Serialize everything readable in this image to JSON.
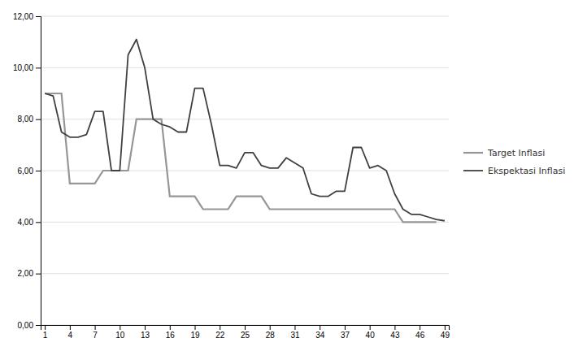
{
  "chart_data": {
    "type": "line",
    "series": [
      {
        "name": "Target Inflasi",
        "color": "#969696",
        "x": [
          1,
          2,
          3,
          4,
          5,
          6,
          7,
          8,
          9,
          10,
          11,
          12,
          13,
          14,
          15,
          16,
          17,
          18,
          19,
          20,
          21,
          22,
          23,
          24,
          25,
          26,
          27,
          28,
          29,
          30,
          31,
          32,
          33,
          34,
          35,
          36,
          37,
          38,
          39,
          40,
          41,
          42,
          43,
          44,
          45,
          46,
          47,
          48
        ],
        "values": [
          9.0,
          9.0,
          9.0,
          5.5,
          5.5,
          5.5,
          5.5,
          6.0,
          6.0,
          6.0,
          6.0,
          8.0,
          8.0,
          8.0,
          8.0,
          5.0,
          5.0,
          5.0,
          5.0,
          4.5,
          4.5,
          4.5,
          4.5,
          5.0,
          5.0,
          5.0,
          5.0,
          4.5,
          4.5,
          4.5,
          4.5,
          4.5,
          4.5,
          4.5,
          4.5,
          4.5,
          4.5,
          4.5,
          4.5,
          4.5,
          4.5,
          4.5,
          4.5,
          4.0,
          4.0,
          4.0,
          4.0,
          4.0
        ]
      },
      {
        "name": "Ekspektasi Inflasi",
        "color": "#404040",
        "x": [
          1,
          2,
          3,
          4,
          5,
          6,
          7,
          8,
          9,
          10,
          11,
          12,
          13,
          14,
          15,
          16,
          17,
          18,
          19,
          20,
          21,
          22,
          23,
          24,
          25,
          26,
          27,
          28,
          29,
          30,
          31,
          32,
          33,
          34,
          35,
          36,
          37,
          38,
          39,
          40,
          41,
          42,
          43,
          44,
          45,
          46,
          47,
          48,
          49
        ],
        "values": [
          9.0,
          8.9,
          7.5,
          7.3,
          7.3,
          7.4,
          8.3,
          8.3,
          6.0,
          6.0,
          10.5,
          11.1,
          10.0,
          8.0,
          7.8,
          7.7,
          7.5,
          7.5,
          9.2,
          9.2,
          7.8,
          6.2,
          6.2,
          6.1,
          6.7,
          6.7,
          6.2,
          6.1,
          6.1,
          6.5,
          6.3,
          6.1,
          5.1,
          5.0,
          5.0,
          5.2,
          5.2,
          6.9,
          6.9,
          6.1,
          6.2,
          6.0,
          5.1,
          4.5,
          4.3,
          4.3,
          4.2,
          4.1,
          4.05
        ]
      }
    ],
    "xlim": [
      0.5,
      49.5
    ],
    "xticks": [
      1,
      4,
      7,
      10,
      13,
      16,
      19,
      22,
      25,
      28,
      31,
      34,
      37,
      40,
      43,
      46,
      49
    ],
    "ylim": [
      0,
      12
    ],
    "yticks": [
      {
        "value": 0.0,
        "label": "0,00"
      },
      {
        "value": 2.0,
        "label": "2,00"
      },
      {
        "value": 4.0,
        "label": "4,00"
      },
      {
        "value": 6.0,
        "label": "6,00"
      },
      {
        "value": 8.0,
        "label": "8,00"
      },
      {
        "value": 10.0,
        "label": "10,00"
      },
      {
        "value": 12.0,
        "label": "12,00"
      }
    ],
    "grid": true,
    "legend": "right"
  }
}
